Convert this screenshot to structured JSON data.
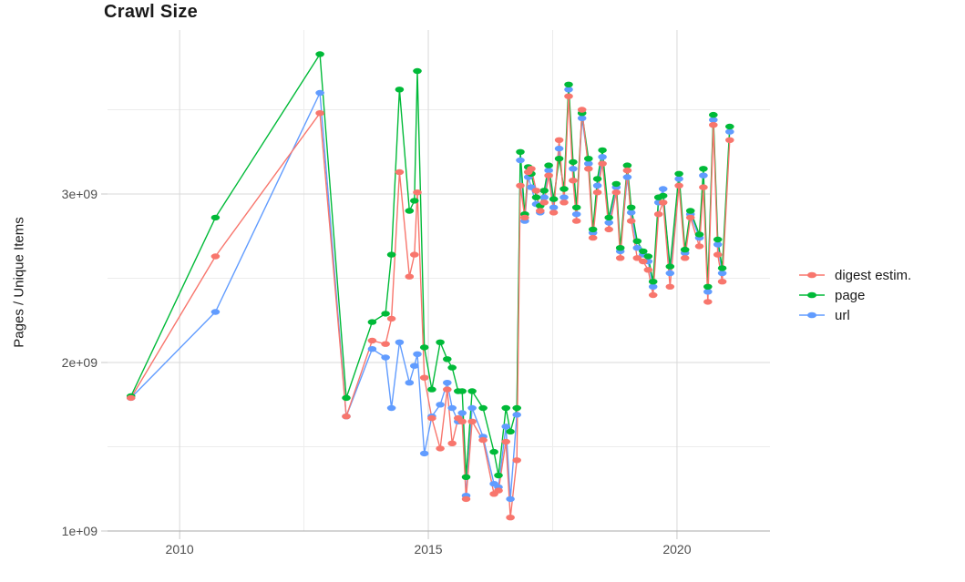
{
  "page": {
    "background": "#ffffff"
  },
  "chart_data": {
    "type": "line",
    "title": "Crawl Size",
    "subtitle": "",
    "xlabel": "",
    "ylabel": "Pages / Unique Items",
    "legend_position": "right",
    "grid": "on",
    "value_unit": "1e9 (axis shows 1e+09 .. 3e+09)",
    "xlim": [
      2008.55,
      2021.87
    ],
    "ylim": [
      1.0,
      3.973
    ],
    "x_axis": {
      "ticks": [
        {
          "label": "2010",
          "value": 2010
        },
        {
          "label": "2015",
          "value": 2015
        },
        {
          "label": "2020",
          "value": 2020
        }
      ],
      "minor_gridlines": [
        2012.5,
        2017.5
      ]
    },
    "y_axis": {
      "ticks": [
        {
          "label": "1e+09",
          "value": 1.0
        },
        {
          "label": "2e+09",
          "value": 2.0
        },
        {
          "label": "3e+09",
          "value": 3.0
        }
      ],
      "minor_gridlines": [
        1.5,
        2.5,
        3.5
      ]
    },
    "x": [
      2009.02,
      2010.72,
      2012.82,
      2013.35,
      2013.87,
      2014.14,
      2014.26,
      2014.42,
      2014.62,
      2014.72,
      2014.78,
      2014.92,
      2015.07,
      2015.24,
      2015.38,
      2015.48,
      2015.6,
      2015.68,
      2015.76,
      2015.88,
      2016.1,
      2016.32,
      2016.41,
      2016.56,
      2016.65,
      2016.78,
      2016.85,
      2016.94,
      2017.01,
      2017.07,
      2017.17,
      2017.25,
      2017.33,
      2017.42,
      2017.52,
      2017.63,
      2017.73,
      2017.82,
      2017.91,
      2017.98,
      2018.09,
      2018.22,
      2018.31,
      2018.4,
      2018.5,
      2018.63,
      2018.78,
      2018.86,
      2019.0,
      2019.08,
      2019.2,
      2019.32,
      2019.42,
      2019.52,
      2019.63,
      2019.72,
      2019.86,
      2020.04,
      2020.16,
      2020.27,
      2020.45,
      2020.53,
      2020.62,
      2020.73,
      2020.82,
      2020.91,
      2021.06
    ],
    "series": [
      {
        "name": "digest estim.",
        "color": "#F8766D",
        "values": [
          1.79,
          2.63,
          3.48,
          1.68,
          2.13,
          2.11,
          2.26,
          3.13,
          2.51,
          2.64,
          3.01,
          1.91,
          1.67,
          1.49,
          1.84,
          1.52,
          1.67,
          1.65,
          1.19,
          1.65,
          1.54,
          1.22,
          1.24,
          1.53,
          1.08,
          1.42,
          3.05,
          2.86,
          3.13,
          3.15,
          3.02,
          2.9,
          2.95,
          3.11,
          2.89,
          3.32,
          2.95,
          3.58,
          3.08,
          2.84,
          3.5,
          3.15,
          2.74,
          3.01,
          3.18,
          2.79,
          3.01,
          2.62,
          3.14,
          2.84,
          2.62,
          2.6,
          2.55,
          2.4,
          2.88,
          2.95,
          2.45,
          3.05,
          2.62,
          2.86,
          2.69,
          3.04,
          2.36,
          3.41,
          2.64,
          2.48,
          3.32
        ]
      },
      {
        "name": "page",
        "color": "#00BA38",
        "values": [
          1.8,
          2.86,
          3.83,
          1.79,
          2.24,
          2.29,
          2.64,
          3.62,
          2.9,
          2.96,
          3.73,
          2.09,
          1.84,
          2.12,
          2.02,
          1.97,
          1.83,
          1.83,
          1.32,
          1.83,
          1.73,
          1.47,
          1.33,
          1.73,
          1.59,
          1.73,
          3.25,
          2.88,
          3.16,
          3.12,
          2.98,
          2.93,
          3.02,
          3.17,
          2.97,
          3.21,
          3.03,
          3.65,
          3.19,
          2.92,
          3.48,
          3.21,
          2.79,
          3.09,
          3.26,
          2.86,
          3.06,
          2.68,
          3.17,
          2.92,
          2.72,
          2.66,
          2.63,
          2.48,
          2.98,
          2.99,
          2.57,
          3.12,
          2.67,
          2.9,
          2.76,
          3.15,
          2.45,
          3.47,
          2.73,
          2.56,
          3.4
        ]
      },
      {
        "name": "url",
        "color": "#619CFF",
        "values": [
          1.79,
          2.3,
          3.6,
          1.68,
          2.08,
          2.03,
          1.73,
          2.12,
          1.88,
          1.98,
          2.05,
          1.46,
          1.68,
          1.75,
          1.88,
          1.73,
          1.65,
          1.7,
          1.21,
          1.73,
          1.56,
          1.28,
          1.26,
          1.62,
          1.19,
          1.69,
          3.2,
          2.84,
          3.1,
          3.04,
          2.94,
          2.89,
          2.98,
          3.14,
          2.92,
          3.27,
          2.98,
          3.62,
          3.15,
          2.88,
          3.45,
          3.18,
          2.77,
          3.05,
          3.22,
          2.83,
          3.04,
          2.66,
          3.1,
          2.89,
          2.68,
          2.64,
          2.6,
          2.45,
          2.95,
          3.03,
          2.53,
          3.09,
          2.65,
          2.88,
          2.74,
          3.11,
          2.42,
          3.44,
          2.7,
          2.53,
          3.37
        ]
      }
    ],
    "colors": {
      "grid_major": "#d9d9d9",
      "grid_minor": "#ececec",
      "axis_line": "#aaaaaa",
      "tick_label": "#4d4d4d",
      "text": "#1a1a1a"
    }
  }
}
